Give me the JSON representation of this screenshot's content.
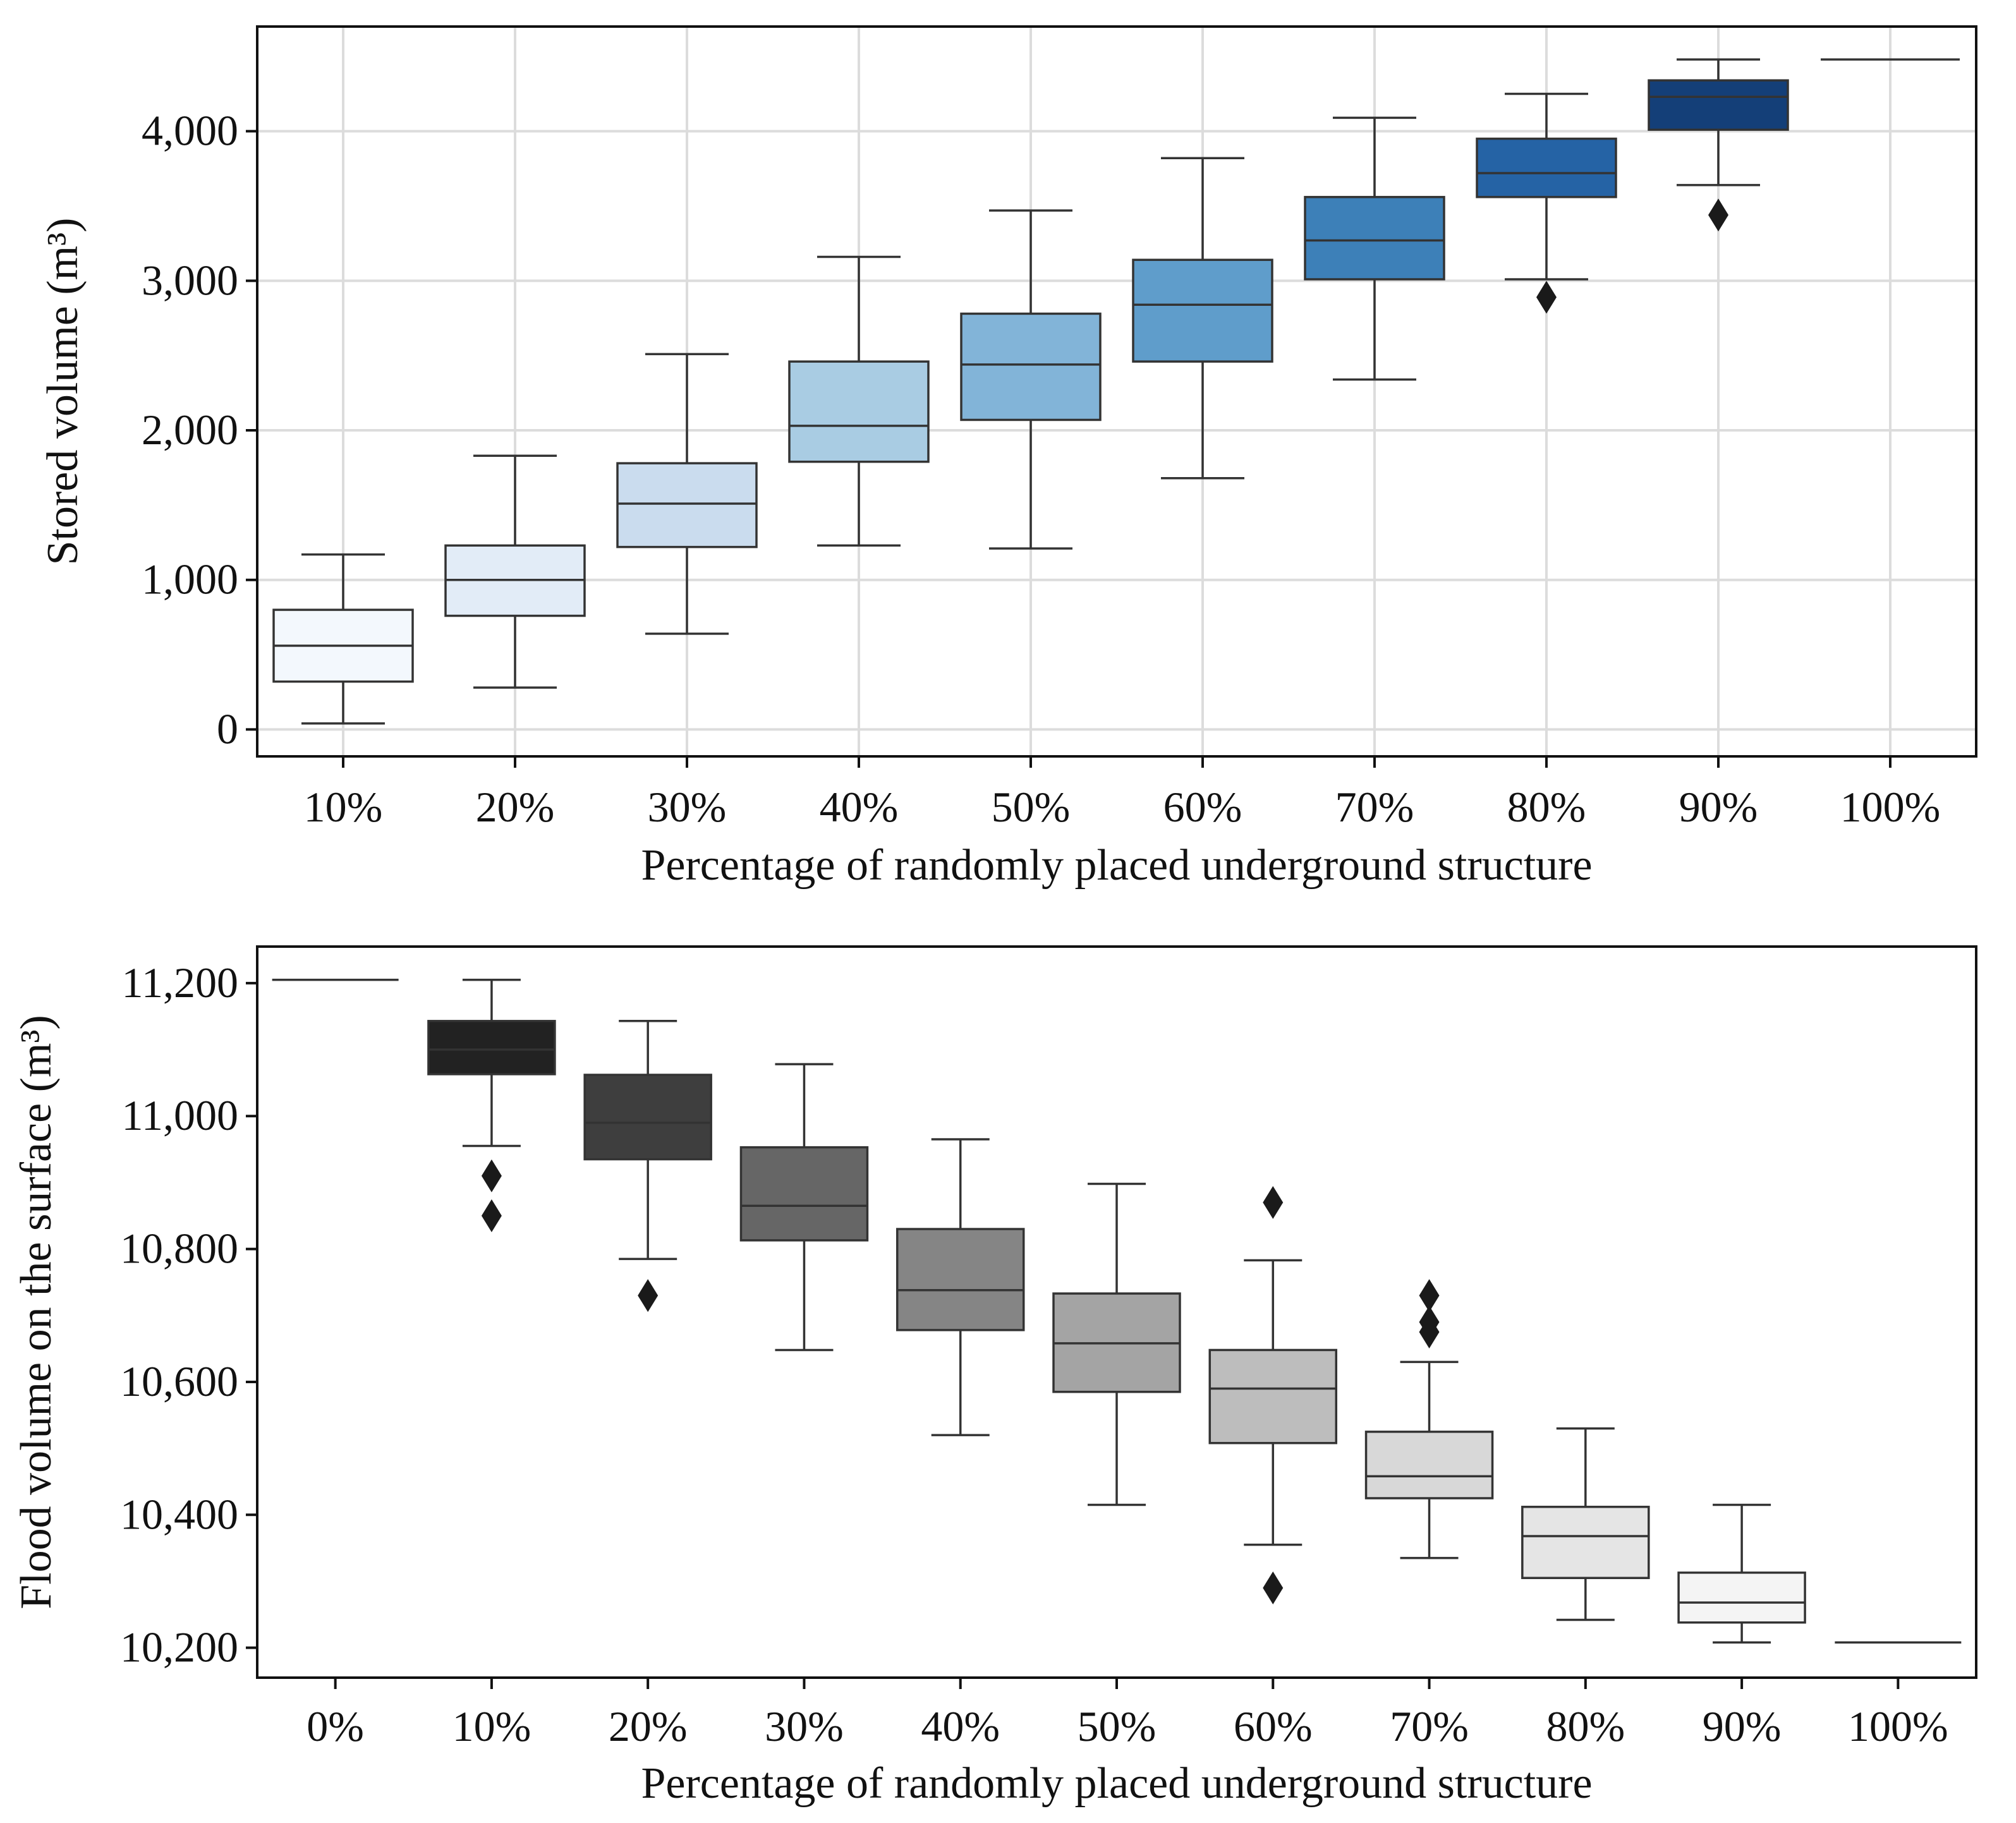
{
  "chart_data": [
    {
      "type": "box",
      "xlabel": "Percentage of randomly placed underground structure",
      "ylabel": "Stored volume (m³)",
      "ylim": [
        -180,
        4700
      ],
      "yticks": [
        0,
        1000,
        2000,
        3000,
        4000
      ],
      "ytick_labels": [
        "0",
        "1,000",
        "2,000",
        "3,000",
        "4,000"
      ],
      "grid": true,
      "categories": [
        "10%",
        "20%",
        "30%",
        "40%",
        "50%",
        "60%",
        "70%",
        "80%",
        "90%",
        "100%"
      ],
      "colors": [
        "#f3f8fd",
        "#e2ecf7",
        "#cadcee",
        "#a9cce3",
        "#82b4d8",
        "#5f9dcb",
        "#3d80b8",
        "#2563a5",
        "#143f78",
        "#ffffff"
      ],
      "boxes": [
        {
          "whisker_low": 40,
          "q1": 320,
          "median": 560,
          "q3": 800,
          "whisker_high": 1170,
          "outliers": []
        },
        {
          "whisker_low": 280,
          "q1": 760,
          "median": 1000,
          "q3": 1230,
          "whisker_high": 1830,
          "outliers": []
        },
        {
          "whisker_low": 640,
          "q1": 1220,
          "median": 1510,
          "q3": 1780,
          "whisker_high": 2510,
          "outliers": []
        },
        {
          "whisker_low": 1230,
          "q1": 1790,
          "median": 2030,
          "q3": 2460,
          "whisker_high": 3160,
          "outliers": []
        },
        {
          "whisker_low": 1210,
          "q1": 2070,
          "median": 2440,
          "q3": 2780,
          "whisker_high": 3470,
          "outliers": []
        },
        {
          "whisker_low": 1680,
          "q1": 2460,
          "median": 2840,
          "q3": 3140,
          "whisker_high": 3820,
          "outliers": []
        },
        {
          "whisker_low": 2340,
          "q1": 3010,
          "median": 3270,
          "q3": 3560,
          "whisker_high": 4090,
          "outliers": []
        },
        {
          "whisker_low": 3010,
          "q1": 3560,
          "median": 3720,
          "q3": 3950,
          "whisker_high": 4250,
          "outliers": [
            2890
          ]
        },
        {
          "whisker_low": 3640,
          "q1": 4010,
          "median": 4230,
          "q3": 4340,
          "whisker_high": 4480,
          "outliers": [
            3440
          ]
        },
        {
          "whisker_low": 4480,
          "q1": 4480,
          "median": 4480,
          "q3": 4480,
          "whisker_high": 4480,
          "outliers": []
        }
      ]
    },
    {
      "type": "box",
      "xlabel": "Percentage of randomly placed underground structure",
      "ylabel": "Flood volume on the surface (m³)",
      "ylim": [
        10155,
        11255
      ],
      "yticks": [
        10200,
        10400,
        10600,
        10800,
        11000,
        11200
      ],
      "ytick_labels": [
        "10,200",
        "10,400",
        "10,600",
        "10,800",
        "11,000",
        "11,200"
      ],
      "grid": false,
      "categories": [
        "0%",
        "10%",
        "20%",
        "30%",
        "40%",
        "50%",
        "60%",
        "70%",
        "80%",
        "90%",
        "100%"
      ],
      "colors": [
        "#ffffff",
        "#222222",
        "#3e3e3e",
        "#666666",
        "#858585",
        "#a4a4a4",
        "#bdbdbd",
        "#d8d8d8",
        "#e5e5e5",
        "#f4f4f4",
        "#ffffff"
      ],
      "boxes": [
        {
          "whisker_low": 11205,
          "q1": 11205,
          "median": 11205,
          "q3": 11205,
          "whisker_high": 11205,
          "outliers": []
        },
        {
          "whisker_low": 10955,
          "q1": 11063,
          "median": 11100,
          "q3": 11143,
          "whisker_high": 11205,
          "outliers": [
            10910,
            10850
          ]
        },
        {
          "whisker_low": 10785,
          "q1": 10935,
          "median": 10990,
          "q3": 11062,
          "whisker_high": 11143,
          "outliers": [
            10730
          ]
        },
        {
          "whisker_low": 10648,
          "q1": 10813,
          "median": 10865,
          "q3": 10953,
          "whisker_high": 11078,
          "outliers": []
        },
        {
          "whisker_low": 10520,
          "q1": 10678,
          "median": 10738,
          "q3": 10830,
          "whisker_high": 10965,
          "outliers": []
        },
        {
          "whisker_low": 10415,
          "q1": 10585,
          "median": 10658,
          "q3": 10733,
          "whisker_high": 10898,
          "outliers": []
        },
        {
          "whisker_low": 10355,
          "q1": 10508,
          "median": 10590,
          "q3": 10648,
          "whisker_high": 10783,
          "outliers": [
            10870,
            10290
          ]
        },
        {
          "whisker_low": 10335,
          "q1": 10425,
          "median": 10458,
          "q3": 10525,
          "whisker_high": 10630,
          "outliers": [
            10730,
            10690,
            10675
          ]
        },
        {
          "whisker_low": 10242,
          "q1": 10305,
          "median": 10368,
          "q3": 10412,
          "whisker_high": 10530,
          "outliers": []
        },
        {
          "whisker_low": 10208,
          "q1": 10238,
          "median": 10268,
          "q3": 10313,
          "whisker_high": 10415,
          "outliers": []
        },
        {
          "whisker_low": 10208,
          "q1": 10208,
          "median": 10208,
          "q3": 10208,
          "whisker_high": 10208,
          "outliers": []
        }
      ]
    }
  ]
}
